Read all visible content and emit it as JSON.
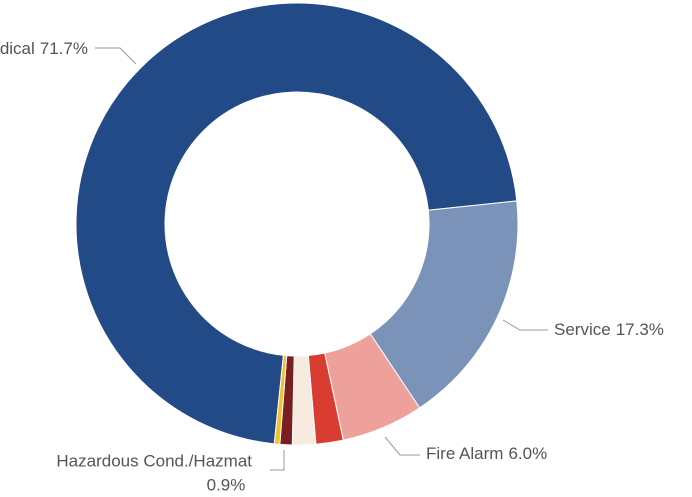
{
  "chart_data": {
    "type": "donut",
    "categories": [
      "Medical",
      "Service",
      "Fire Alarm",
      null,
      null,
      "Hazardous Cond./Hazmat",
      null
    ],
    "values": [
      71.7,
      17.3,
      6.0,
      2.0,
      1.7,
      0.9,
      0.4
    ],
    "value_labels": [
      "71.7%",
      "17.3%",
      "6.0%",
      null,
      null,
      "0.9%",
      null
    ],
    "colors": [
      "#214a87",
      "#7b93b8",
      "#eda19a",
      "#d93c30",
      "#f7ebe0",
      "#7a1e22",
      "#f0c230"
    ]
  }
}
